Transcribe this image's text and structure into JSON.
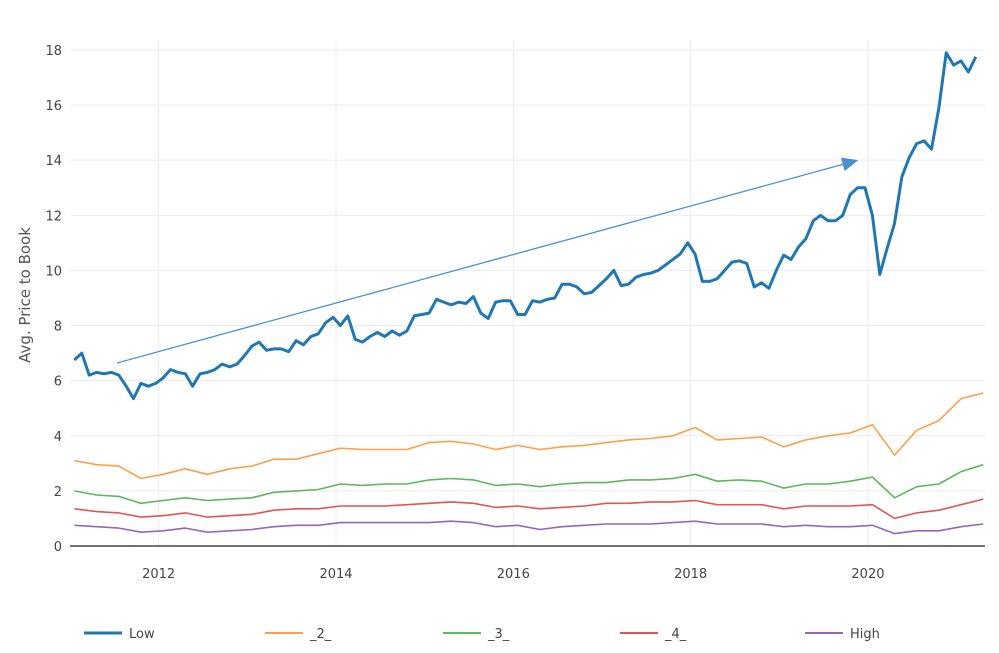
{
  "chart_data": {
    "type": "line",
    "title": "",
    "xlabel": "",
    "ylabel": "Avg. Price to Book",
    "xlim": [
      2011.0,
      2021.32
    ],
    "ylim": [
      0,
      18.5
    ],
    "xticks": [
      2012,
      2014,
      2016,
      2018,
      2020
    ],
    "yticks": [
      0,
      2,
      4,
      6,
      8,
      10,
      12,
      14,
      16,
      18
    ],
    "grid": true,
    "legend": "bottom",
    "series": [
      {
        "name": "Low",
        "color": "#1f77b4",
        "start_year": 2011.05,
        "step_years": 0.08333,
        "values": [
          6.75,
          7.0,
          6.2,
          6.3,
          6.25,
          6.3,
          6.2,
          5.8,
          5.35,
          5.9,
          5.8,
          5.9,
          6.1,
          6.4,
          6.3,
          6.25,
          5.8,
          6.25,
          6.3,
          6.4,
          6.6,
          6.5,
          6.6,
          6.9,
          7.25,
          7.4,
          7.1,
          7.15,
          7.15,
          7.05,
          7.45,
          7.3,
          7.6,
          7.7,
          8.1,
          8.3,
          8.0,
          8.35,
          7.5,
          7.4,
          7.6,
          7.75,
          7.6,
          7.8,
          7.65,
          7.8,
          8.35,
          8.4,
          8.45,
          8.95,
          8.85,
          8.75,
          8.85,
          8.8,
          9.05,
          8.45,
          8.25,
          8.85,
          8.9,
          8.9,
          8.4,
          8.4,
          8.9,
          8.85,
          8.95,
          9.0,
          9.5,
          9.5,
          9.4,
          9.15,
          9.2,
          9.45,
          9.7,
          10.0,
          9.45,
          9.5,
          9.75,
          9.85,
          9.9,
          10.0,
          10.2,
          10.4,
          10.6,
          11.0,
          10.6,
          9.6,
          9.6,
          9.7,
          10.0,
          10.3,
          10.35,
          10.25,
          9.4,
          9.55,
          9.35,
          10.0,
          10.55,
          10.4,
          10.85,
          11.15,
          11.8,
          12.0,
          11.8,
          11.8,
          12.0,
          12.75,
          13.0,
          13.0,
          12.0,
          9.85,
          10.8,
          11.7,
          13.4,
          14.1,
          14.6,
          14.7,
          14.4,
          15.9,
          17.9,
          17.45,
          17.6,
          17.2,
          17.75
        ]
      },
      {
        "name": "_2_",
        "color": "#ff9f4a",
        "start_year": 2011.05,
        "step_years": 0.25,
        "values": [
          3.1,
          2.95,
          2.9,
          2.45,
          2.6,
          2.8,
          2.6,
          2.8,
          2.9,
          3.15,
          3.15,
          3.35,
          3.55,
          3.5,
          3.5,
          3.5,
          3.75,
          3.8,
          3.7,
          3.5,
          3.65,
          3.5,
          3.6,
          3.65,
          3.75,
          3.85,
          3.9,
          4.0,
          4.3,
          3.85,
          3.9,
          3.95,
          3.6,
          3.85,
          4.0,
          4.1,
          4.4,
          3.3,
          4.2,
          4.55,
          5.35,
          5.55
        ]
      },
      {
        "name": "_3_",
        "color": "#5cb85c",
        "start_year": 2011.05,
        "step_years": 0.25,
        "values": [
          2.0,
          1.85,
          1.8,
          1.55,
          1.65,
          1.75,
          1.65,
          1.7,
          1.75,
          1.95,
          2.0,
          2.05,
          2.25,
          2.2,
          2.25,
          2.25,
          2.4,
          2.45,
          2.4,
          2.2,
          2.25,
          2.15,
          2.25,
          2.3,
          2.3,
          2.4,
          2.4,
          2.45,
          2.6,
          2.35,
          2.4,
          2.35,
          2.1,
          2.25,
          2.25,
          2.35,
          2.5,
          1.75,
          2.15,
          2.25,
          2.7,
          2.95
        ]
      },
      {
        "name": "_4_",
        "color": "#e05555",
        "start_year": 2011.05,
        "step_years": 0.25,
        "values": [
          1.35,
          1.25,
          1.2,
          1.05,
          1.1,
          1.2,
          1.05,
          1.1,
          1.15,
          1.3,
          1.35,
          1.35,
          1.45,
          1.45,
          1.45,
          1.5,
          1.55,
          1.6,
          1.55,
          1.4,
          1.45,
          1.35,
          1.4,
          1.45,
          1.55,
          1.55,
          1.6,
          1.6,
          1.65,
          1.5,
          1.5,
          1.5,
          1.35,
          1.45,
          1.45,
          1.45,
          1.5,
          1.0,
          1.2,
          1.3,
          1.5,
          1.7
        ]
      },
      {
        "name": "High",
        "color": "#9467bd",
        "start_year": 2011.05,
        "step_years": 0.25,
        "values": [
          0.75,
          0.7,
          0.65,
          0.5,
          0.55,
          0.65,
          0.5,
          0.55,
          0.6,
          0.7,
          0.75,
          0.75,
          0.85,
          0.85,
          0.85,
          0.85,
          0.85,
          0.9,
          0.85,
          0.7,
          0.75,
          0.6,
          0.7,
          0.75,
          0.8,
          0.8,
          0.8,
          0.85,
          0.9,
          0.8,
          0.8,
          0.8,
          0.7,
          0.75,
          0.7,
          0.7,
          0.75,
          0.45,
          0.55,
          0.55,
          0.7,
          0.8
        ]
      }
    ],
    "annotations": [
      {
        "type": "arrow",
        "color": "#4a90d0",
        "from": [
          2011.53,
          6.64
        ],
        "to": [
          2019.89,
          14.0
        ]
      }
    ]
  }
}
